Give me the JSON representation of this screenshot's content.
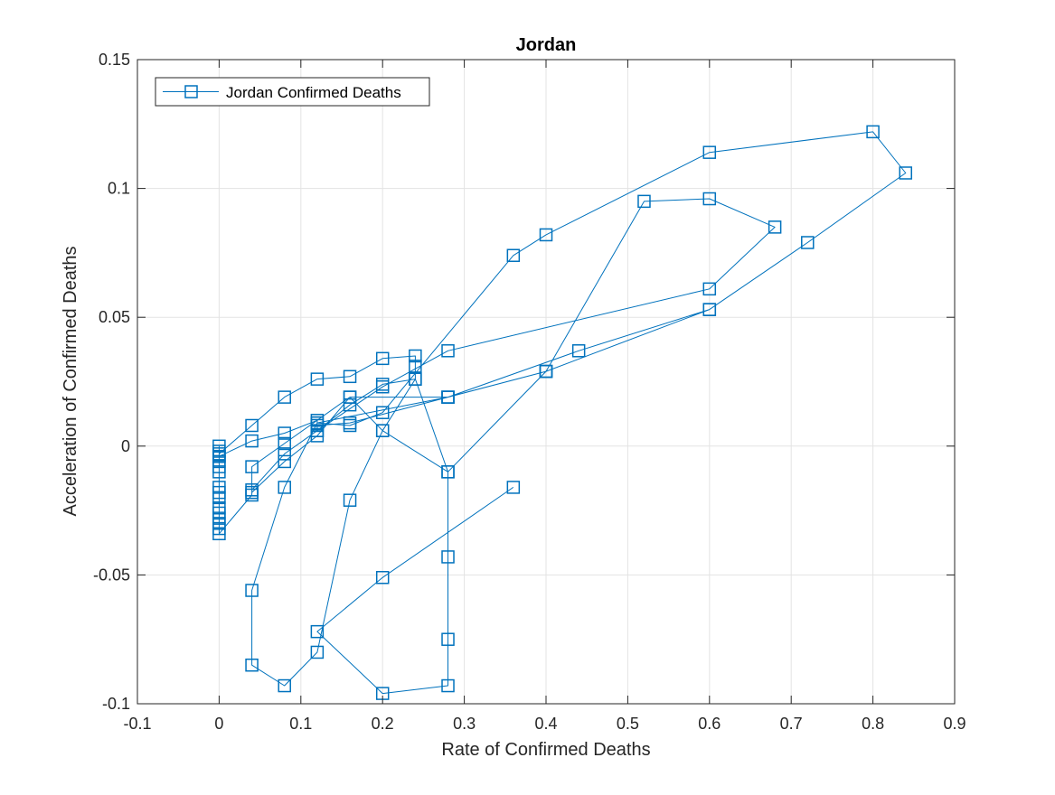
{
  "chart_data": {
    "type": "line",
    "title": "Jordan",
    "xlabel": "Rate of Confirmed Deaths",
    "ylabel": "Acceleration of Confirmed Deaths",
    "xlim": [
      -0.1,
      0.9
    ],
    "ylim": [
      -0.1,
      0.15
    ],
    "xticks": [
      -0.1,
      0,
      0.1,
      0.2,
      0.3,
      0.4,
      0.5,
      0.6,
      0.7,
      0.8,
      0.9
    ],
    "xtick_labels": [
      "-0.1",
      "0",
      "0.1",
      "0.2",
      "0.3",
      "0.4",
      "0.5",
      "0.6",
      "0.7",
      "0.8",
      "0.9"
    ],
    "yticks": [
      -0.1,
      -0.05,
      0,
      0.05,
      0.1,
      0.15
    ],
    "ytick_labels": [
      "-0.1",
      "-0.05",
      "0",
      "0.05",
      "0.1",
      "0.15"
    ],
    "grid": true,
    "legend_position": "top-left",
    "color": "#0072BD",
    "marker": "square",
    "series": [
      {
        "name": "Jordan Confirmed Deaths",
        "x": [
          0,
          0,
          0,
          0,
          0,
          0,
          0,
          0,
          0,
          0,
          0,
          0,
          0,
          0,
          0,
          0.04,
          0.04,
          0.08,
          0.12,
          0.16,
          0.2,
          0.24,
          0.24,
          0.24,
          0.2,
          0.16,
          0.12,
          0.08,
          0.04,
          0,
          0,
          0.04,
          0.08,
          0.12,
          0.12,
          0.16,
          0.2,
          0.36,
          0.4,
          0.6,
          0.8,
          0.84,
          0.72,
          0.6,
          0.44,
          0.28,
          0.16,
          0.08,
          0.04,
          0.04,
          0.08,
          0.12,
          0.16,
          0.2,
          0.24,
          0.28,
          0.4,
          0.52,
          0.6,
          0.68,
          0.6,
          0.28,
          0.2,
          0.12,
          0.12,
          0.16,
          0.28,
          0.4,
          0.6,
          0.4,
          0.28,
          0.12,
          0.08,
          0.04,
          0.04,
          0.08,
          0.12,
          0.16,
          0.2,
          0.28,
          0.28,
          0.28,
          0.28,
          0.2,
          0.12,
          0.2,
          0.36
        ],
        "y": [
          0,
          -0.002,
          -0.004,
          -0.006,
          -0.008,
          -0.01,
          -0.016,
          -0.018,
          -0.02,
          -0.024,
          -0.026,
          -0.028,
          -0.03,
          -0.032,
          -0.034,
          -0.019,
          -0.017,
          -0.003,
          0.006,
          0.016,
          0.024,
          0.026,
          0.031,
          0.035,
          0.034,
          0.027,
          0.026,
          0.019,
          0.008,
          -0.003,
          -0.004,
          0.002,
          0.005,
          0.01,
          0.009,
          0.008,
          0.013,
          0.074,
          0.082,
          0.114,
          0.122,
          0.106,
          0.079,
          0.053,
          0.037,
          0.019,
          0.019,
          0.001,
          -0.008,
          -0.018,
          -0.006,
          0.004,
          0.019,
          0.006,
          0.026,
          -0.01,
          0.029,
          0.095,
          0.096,
          0.085,
          0.061,
          0.037,
          0.023,
          0.006,
          0.008,
          0.009,
          0.019,
          0.029,
          0.053,
          0.029,
          0.019,
          0.009,
          -0.016,
          -0.056,
          -0.085,
          -0.093,
          -0.08,
          -0.021,
          0.006,
          -0.01,
          -0.043,
          -0.075,
          -0.093,
          -0.096,
          -0.072,
          -0.051,
          -0.016
        ]
      }
    ]
  }
}
